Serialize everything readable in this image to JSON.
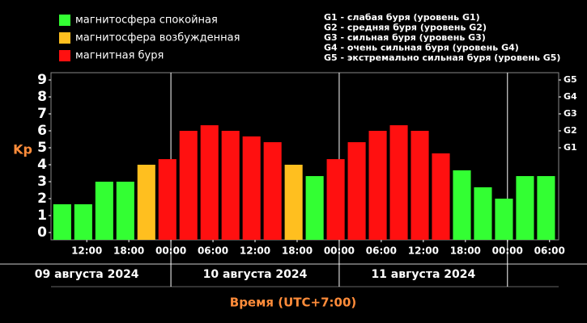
{
  "chart_data": {
    "type": "bar",
    "ylabel": "Kp",
    "xlabel": "Время (UTC+7:00)",
    "legend": [
      {
        "name": "магнитосфера спокойная",
        "color": "#33ff33"
      },
      {
        "name": "магнитосфера возбужденная",
        "color": "#ffbf1f"
      },
      {
        "name": "магнитная буря",
        "color": "#ff1010"
      }
    ],
    "storm_levels": [
      "G1 - слабая буря (уровень G1)",
      "G2 - средняя буря (уровень G2)",
      "G3 - сильная буря (уровень G3)",
      "G4 - очень сильная буря (уровень G4)",
      "G5 - экстремально сильная буря (уровень G5)"
    ],
    "x": [
      8.5,
      11.5,
      14.5,
      17.5,
      20.5,
      23.5,
      26.5,
      29.5,
      32.5,
      35.5,
      38.5,
      41.5,
      44.5,
      47.5,
      50.5,
      53.5,
      56.5,
      59.5,
      62.5,
      65.5,
      68.5,
      71.5,
      74.5,
      77.5
    ],
    "values": [
      1.67,
      1.67,
      3,
      3,
      4,
      4.33,
      6,
      6.33,
      6,
      5.67,
      5.33,
      4,
      3.33,
      4.33,
      5.33,
      6,
      6.33,
      6,
      4.67,
      3.67,
      2.67,
      2,
      3.33,
      3.33
    ],
    "colors": [
      "#33ff33",
      "#33ff33",
      "#33ff33",
      "#33ff33",
      "#ffbf1f",
      "#ff1010",
      "#ff1010",
      "#ff1010",
      "#ff1010",
      "#ff1010",
      "#ff1010",
      "#ffbf1f",
      "#33ff33",
      "#ff1010",
      "#ff1010",
      "#ff1010",
      "#ff1010",
      "#ff1010",
      "#ff1010",
      "#33ff33",
      "#33ff33",
      "#33ff33",
      "#33ff33",
      "#33ff33"
    ],
    "xlim": [
      6.9,
      79.3
    ],
    "xticks": [
      {
        "value": 12,
        "label": "12:00"
      },
      {
        "value": 18,
        "label": "18:00"
      },
      {
        "value": 24,
        "label": "00:00"
      },
      {
        "value": 30,
        "label": "06:00"
      },
      {
        "value": 36,
        "label": "12:00"
      },
      {
        "value": 42,
        "label": "18:00"
      },
      {
        "value": 48,
        "label": "00:00"
      },
      {
        "value": 54,
        "label": "06:00"
      },
      {
        "value": 60,
        "label": "12:00"
      },
      {
        "value": 66,
        "label": "18:00"
      },
      {
        "value": 72,
        "label": "00:00"
      },
      {
        "value": 78,
        "label": "06:00"
      }
    ],
    "day_lines": [
      24,
      48,
      72
    ],
    "dates": [
      {
        "value": 12,
        "label": "09 августа 2024"
      },
      {
        "value": 36,
        "label": "10 августа 2024"
      },
      {
        "value": 60,
        "label": "11 августа 2024"
      }
    ],
    "ylim": [
      -0.43,
      9.43
    ],
    "yticks": [
      0,
      1,
      2,
      3,
      4,
      5,
      6,
      7,
      8,
      9
    ],
    "y2lim": [
      -0.43,
      9.43
    ],
    "y2ticks": [
      {
        "value": 5,
        "label": "G1"
      },
      {
        "value": 6,
        "label": "G2"
      },
      {
        "value": 7,
        "label": "G3"
      },
      {
        "value": 8,
        "label": "G4"
      },
      {
        "value": 9,
        "label": "G5"
      }
    ]
  }
}
